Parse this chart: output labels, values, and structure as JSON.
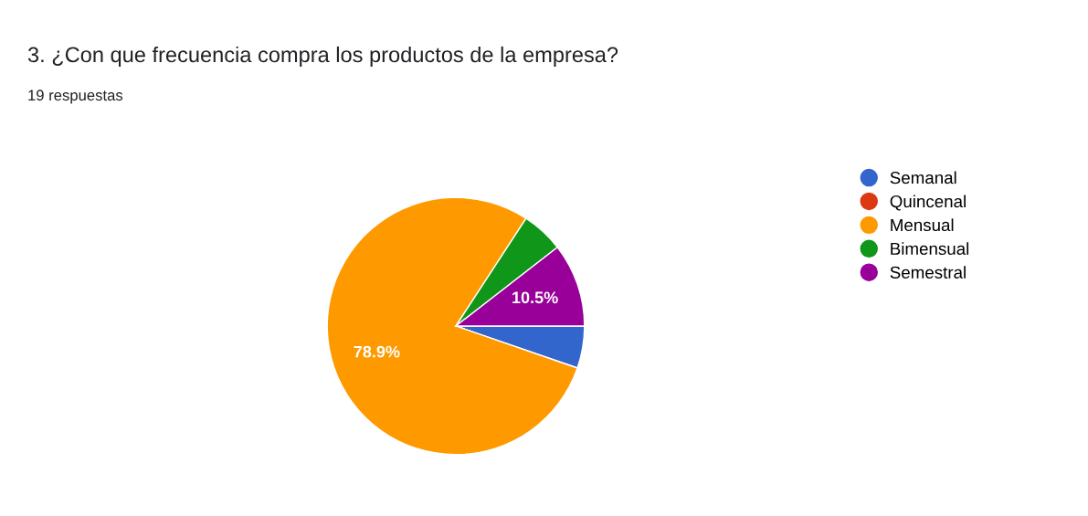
{
  "chart_data": {
    "type": "pie",
    "title": "3. ¿Con que frecuencia compra los productos de la empresa?",
    "subtitle": "19 respuestas",
    "categories": [
      "Semanal",
      "Quincenal",
      "Mensual",
      "Bimensual",
      "Semestral"
    ],
    "values": [
      5.3,
      0,
      78.9,
      5.3,
      10.5
    ],
    "colors": [
      "#3366cc",
      "#dc3912",
      "#ff9900",
      "#109618",
      "#990099"
    ],
    "value_labels": [
      null,
      null,
      "78.9%",
      null,
      "10.5%"
    ],
    "legend": "right"
  }
}
